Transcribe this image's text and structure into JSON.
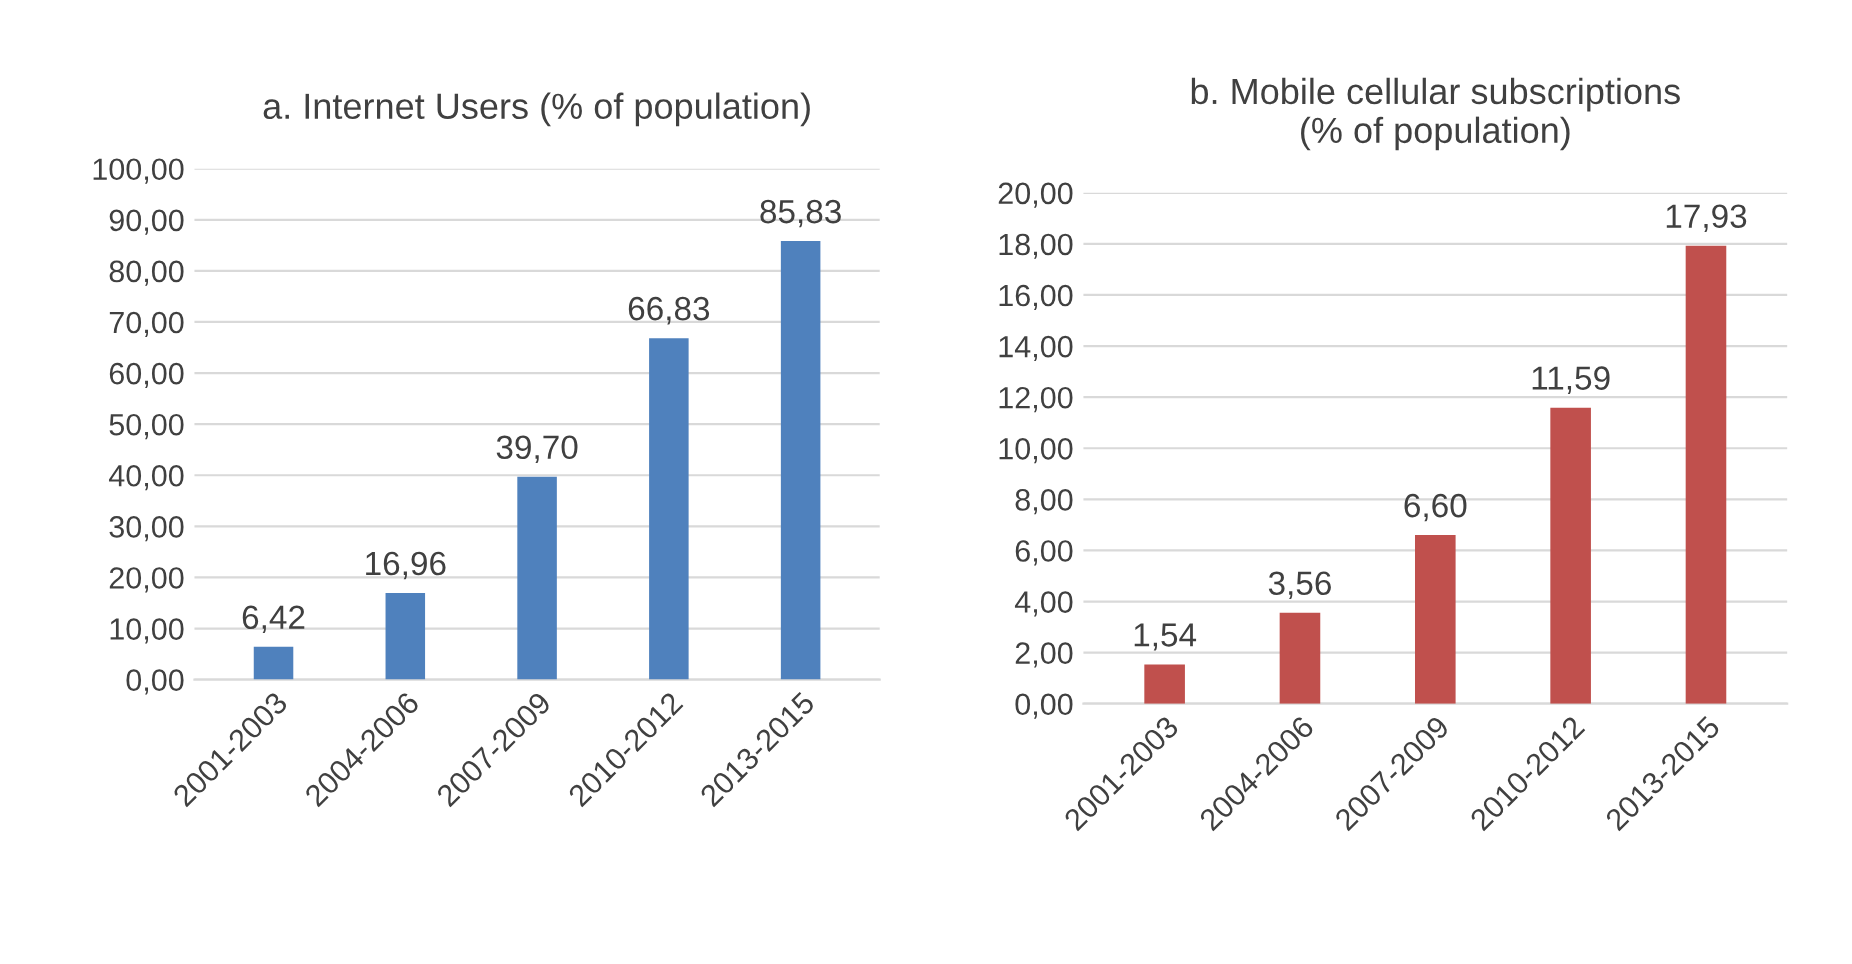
{
  "chart_data": [
    {
      "type": "bar",
      "title": "a. Internet Users (% of population)",
      "categories": [
        "2001-2003",
        "2004-2006",
        "2007-2009",
        "2010-2012",
        "2013-2015"
      ],
      "values": [
        6.42,
        16.96,
        39.7,
        66.83,
        85.83
      ],
      "color": "#4f81bd",
      "value_labels": [
        "6,42",
        "16,96",
        "39,70",
        "66,83",
        "85,83"
      ],
      "ylim": [
        0,
        100
      ],
      "yticks": [
        {
          "value": 0,
          "label": "0,00"
        },
        {
          "value": 10,
          "label": "10,00"
        },
        {
          "value": 20,
          "label": "20,00"
        },
        {
          "value": 30,
          "label": "30,00"
        },
        {
          "value": 40,
          "label": "40,00"
        },
        {
          "value": 50,
          "label": "50,00"
        },
        {
          "value": 60,
          "label": "60,00"
        },
        {
          "value": 70,
          "label": "70,00"
        },
        {
          "value": 80,
          "label": "80,00"
        },
        {
          "value": 90,
          "label": "90,00"
        },
        {
          "value": 100,
          "label": "100,00"
        }
      ],
      "grid": "y"
    },
    {
      "type": "bar",
      "title": "b. Mobile cellular subscriptions\n(% of population)",
      "categories": [
        "2001-2003",
        "2004-2006",
        "2007-2009",
        "2010-2012",
        "2013-2015"
      ],
      "values": [
        1.54,
        3.56,
        6.6,
        11.59,
        17.93
      ],
      "color": "#c0504d",
      "value_labels": [
        "1,54",
        "3,56",
        "6,60",
        "11,59",
        "17,93"
      ],
      "ylim": [
        0,
        20
      ],
      "yticks": [
        {
          "value": 0,
          "label": "0,00"
        },
        {
          "value": 2,
          "label": "2,00"
        },
        {
          "value": 4,
          "label": "4,00"
        },
        {
          "value": 6,
          "label": "6,00"
        },
        {
          "value": 8,
          "label": "8,00"
        },
        {
          "value": 10,
          "label": "10,00"
        },
        {
          "value": 12,
          "label": "12,00"
        },
        {
          "value": 14,
          "label": "14,00"
        },
        {
          "value": 16,
          "label": "16,00"
        },
        {
          "value": 18,
          "label": "18,00"
        },
        {
          "value": 20,
          "label": "20,00"
        }
      ],
      "grid": "y"
    }
  ]
}
